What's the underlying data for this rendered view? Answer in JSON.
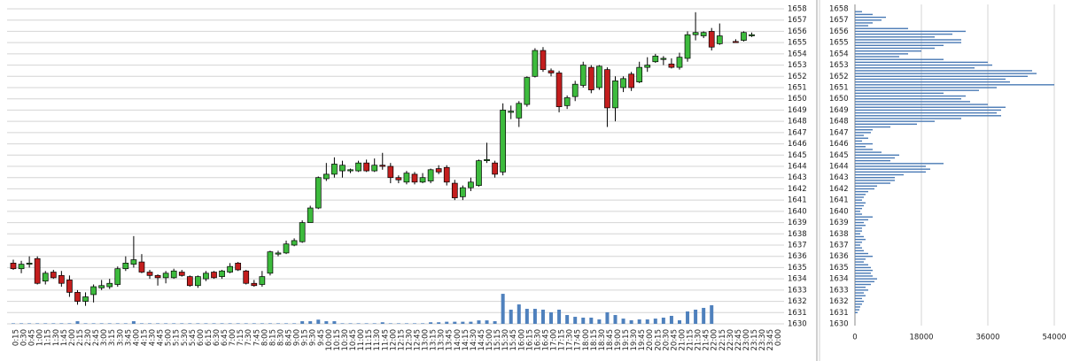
{
  "chart_data": [
    {
      "type": "candlestick",
      "categories": [
        "0:15",
        "0:30",
        "0:45",
        "1:00",
        "1:15",
        "1:30",
        "1:45",
        "2:00",
        "2:15",
        "2:30",
        "2:45",
        "3:00",
        "3:15",
        "3:30",
        "3:45",
        "4:00",
        "4:15",
        "4:30",
        "4:45",
        "5:00",
        "5:15",
        "5:30",
        "5:45",
        "6:00",
        "6:15",
        "6:30",
        "6:45",
        "7:00",
        "7:15",
        "7:30",
        "7:45",
        "8:00",
        "8:15",
        "8:30",
        "8:45",
        "9:00",
        "9:15",
        "9:30",
        "9:45",
        "10:00",
        "10:15",
        "10:30",
        "10:45",
        "11:00",
        "11:15",
        "11:30",
        "11:45",
        "12:00",
        "12:15",
        "12:30",
        "12:45",
        "13:00",
        "13:15",
        "13:30",
        "13:45",
        "14:00",
        "14:15",
        "14:30",
        "14:45",
        "15:00",
        "15:15",
        "15:30",
        "15:45",
        "16:00",
        "16:15",
        "16:30",
        "16:45",
        "17:00",
        "17:15",
        "17:30",
        "17:45",
        "18:00",
        "18:15",
        "18:30",
        "18:45",
        "19:00",
        "19:15",
        "19:30",
        "19:45",
        "20:00",
        "20:15",
        "20:30",
        "20:45",
        "21:00",
        "21:15",
        "21:30",
        "21:45",
        "22:00",
        "22:15",
        "22:30",
        "22:45",
        "23:00",
        "23:15",
        "23:30",
        "23:45",
        "0:00"
      ],
      "open": [
        1635.4,
        1634.9,
        1635.3,
        1635.8,
        1633.8,
        1634.6,
        1634.3,
        1633.9,
        1632.8,
        1632,
        1632.6,
        1633.2,
        1633.3,
        1633.5,
        1634.9,
        1635.3,
        1635.5,
        1634.6,
        1634.3,
        1634.1,
        1634.1,
        1634.6,
        1634.2,
        1633.4,
        1634,
        1634.6,
        1634.2,
        1634.6,
        1635.4,
        1634.7,
        1633.6,
        1633.5,
        1634.5,
        1636.2,
        1636.3,
        1637,
        1637.3,
        1639,
        1640.3,
        1642.9,
        1643.3,
        1643.6,
        1643.6,
        1643.6,
        1644.3,
        1643.6,
        1644.1,
        1644,
        1643,
        1642.6,
        1643.3,
        1642.6,
        1642.7,
        1643.8,
        1643.9,
        1642.5,
        1641.3,
        1642.1,
        1642.3,
        1644.5,
        1644.3,
        1643.5,
        1648.8,
        1648.3,
        1649.5,
        1652,
        1654.3,
        1652.5,
        1652.3,
        1649.4,
        1650.2,
        1651.2,
        1652.8,
        1651,
        1652.6,
        1649.2,
        1651,
        1652.2,
        1651.5,
        1652.8,
        1653.3,
        1653.5,
        1653.1,
        1652.8,
        1653.6,
        1655.7,
        1655.6,
        1656,
        1654.9,
        null,
        1655.1,
        1655.2,
        1655.6,
        null,
        null,
        null
      ],
      "high": [
        1635.7,
        1635.6,
        1636,
        1636,
        1634.7,
        1634.8,
        1634.7,
        1634.3,
        1633,
        1632.8,
        1633.5,
        1633.9,
        1634,
        1635.1,
        1636,
        1637.8,
        1636.2,
        1634.8,
        1634.4,
        1634.7,
        1634.9,
        1634.8,
        1634.3,
        1634.3,
        1634.7,
        1634.7,
        1634.8,
        1635.4,
        1635.5,
        1634.8,
        1633.9,
        1634.7,
        1636.5,
        1636.5,
        1637.4,
        1637.6,
        1639.2,
        1640.5,
        1643.1,
        1644.3,
        1644.8,
        1644.5,
        1643.8,
        1644.5,
        1644.6,
        1644.7,
        1645.2,
        1644.3,
        1643.2,
        1643.6,
        1643.5,
        1643.4,
        1643.8,
        1644.1,
        1644.1,
        1642.8,
        1642.3,
        1643,
        1644.6,
        1646.1,
        1644.5,
        1649.6,
        1649.4,
        1649.8,
        1652,
        1654.5,
        1654.6,
        1652.7,
        1652.5,
        1650.3,
        1651.6,
        1653.3,
        1653,
        1653,
        1652.8,
        1652,
        1652,
        1652.4,
        1653.3,
        1653.7,
        1654,
        1653.8,
        1653.6,
        1654.1,
        1656,
        1657.7,
        1656,
        1656.3,
        1656.7,
        null,
        1655.3,
        1656,
        1655.9,
        null,
        null,
        null
      ],
      "low": [
        1634.8,
        1634.5,
        1635,
        1633.5,
        1633.5,
        1634,
        1633.3,
        1632.4,
        1631.7,
        1631.6,
        1631.9,
        1633,
        1633.1,
        1633.3,
        1634.7,
        1635,
        1634.5,
        1634,
        1633.4,
        1633.6,
        1634,
        1634.2,
        1633.3,
        1633.2,
        1633.8,
        1634,
        1634,
        1634.5,
        1634.7,
        1633.5,
        1633.3,
        1633.3,
        1634.3,
        1636,
        1636.2,
        1636.9,
        1637.2,
        1639,
        1640.2,
        1642.7,
        1643,
        1643,
        1643.4,
        1643.5,
        1643.5,
        1643.5,
        1643.7,
        1642.5,
        1642.5,
        1642.4,
        1642.4,
        1642.5,
        1642.5,
        1643.3,
        1642.3,
        1641,
        1641,
        1641.8,
        1642.2,
        1644.3,
        1643,
        1643.2,
        1648.2,
        1647.5,
        1649.3,
        1651.9,
        1652.4,
        1652,
        1648.8,
        1649.1,
        1649.8,
        1651,
        1650.5,
        1650.8,
        1647.5,
        1648,
        1650.6,
        1650.7,
        1651.4,
        1652.4,
        1653.2,
        1653,
        1652.7,
        1652.6,
        1653.3,
        1655.2,
        1655.4,
        1654.3,
        1654.8,
        null,
        1655,
        1655.1,
        1655.5,
        null,
        null,
        null
      ],
      "close": [
        1634.9,
        1635.3,
        1635.4,
        1633.6,
        1634.5,
        1634.1,
        1633.6,
        1632.8,
        1632,
        1632.4,
        1633.3,
        1633.4,
        1633.6,
        1634.9,
        1635.4,
        1635.7,
        1634.6,
        1634.3,
        1634.1,
        1634.5,
        1634.7,
        1634.3,
        1633.4,
        1634.2,
        1634.5,
        1634.1,
        1634.7,
        1635.1,
        1634.8,
        1633.6,
        1633.4,
        1634.2,
        1636.4,
        1636.3,
        1637.1,
        1637.4,
        1639,
        1640.3,
        1643,
        1643.3,
        1644.2,
        1644.1,
        1643.7,
        1644.3,
        1643.6,
        1644.1,
        1644,
        1643,
        1642.8,
        1643.4,
        1642.6,
        1643,
        1643.7,
        1643.5,
        1642.6,
        1641.2,
        1642.1,
        1642.6,
        1644.5,
        1644.6,
        1643.3,
        1649,
        1648.9,
        1649.6,
        1651.9,
        1654.3,
        1652.6,
        1652.3,
        1649.3,
        1650.1,
        1651.3,
        1653,
        1650.8,
        1652.9,
        1649.2,
        1651.6,
        1651.8,
        1651,
        1652.8,
        1653,
        1653.8,
        1653.6,
        1652.8,
        1653.7,
        1655.7,
        1655.9,
        1655.9,
        1654.6,
        1655.6,
        null,
        1655,
        1655.9,
        1655.7,
        null,
        null,
        null
      ],
      "volume": [
        50,
        50,
        50,
        50,
        50,
        50,
        50,
        50,
        250,
        50,
        50,
        50,
        50,
        50,
        50,
        250,
        50,
        50,
        50,
        50,
        50,
        50,
        50,
        50,
        50,
        50,
        50,
        50,
        50,
        50,
        50,
        50,
        50,
        50,
        50,
        50,
        250,
        250,
        400,
        250,
        250,
        50,
        50,
        50,
        50,
        50,
        150,
        50,
        50,
        50,
        50,
        50,
        150,
        150,
        200,
        200,
        200,
        200,
        330,
        330,
        250,
        2860,
        1350,
        1850,
        1430,
        1430,
        1350,
        1100,
        1350,
        840,
        670,
        590,
        590,
        420,
        1100,
        840,
        500,
        340,
        420,
        420,
        500,
        590,
        760,
        340,
        1180,
        1350,
        1520,
        1770,
        null,
        null,
        null,
        null,
        null,
        null,
        null,
        null
      ],
      "up_color": "#3dbb3d",
      "down_color": "#c41e1e",
      "volume_color": "#4f81bd",
      "ylim": [
        1630,
        1658
      ],
      "yticks": [
        1630,
        1631,
        1632,
        1633,
        1634,
        1635,
        1636,
        1637,
        1638,
        1639,
        1640,
        1641,
        1642,
        1643,
        1644,
        1645,
        1646,
        1647,
        1648,
        1649,
        1650,
        1651,
        1652,
        1653,
        1654,
        1655,
        1656,
        1657,
        1658
      ],
      "volume_lim": [
        0,
        30000
      ],
      "grid": true
    },
    {
      "type": "profile",
      "levels": [
        1630,
        1630.25,
        1630.5,
        1630.75,
        1631,
        1631.25,
        1631.5,
        1631.75,
        1632,
        1632.25,
        1632.5,
        1632.75,
        1633,
        1633.25,
        1633.5,
        1633.75,
        1634,
        1634.25,
        1634.5,
        1634.75,
        1635,
        1635.25,
        1635.5,
        1635.75,
        1636,
        1636.25,
        1636.5,
        1636.75,
        1637,
        1637.25,
        1637.5,
        1637.75,
        1638,
        1638.25,
        1638.5,
        1638.75,
        1639,
        1639.25,
        1639.5,
        1639.75,
        1640,
        1640.25,
        1640.5,
        1640.75,
        1641,
        1641.25,
        1641.5,
        1641.75,
        1642,
        1642.25,
        1642.5,
        1642.75,
        1643,
        1643.25,
        1643.5,
        1643.75,
        1644,
        1644.25,
        1644.5,
        1644.75,
        1645,
        1645.25,
        1645.5,
        1645.75,
        1646,
        1646.25,
        1646.5,
        1646.75,
        1647,
        1647.25,
        1647.5,
        1647.75,
        1648,
        1648.25,
        1648.5,
        1648.75,
        1649,
        1649.25,
        1649.5,
        1649.75,
        1650,
        1650.25,
        1650.5,
        1650.75,
        1651,
        1651.25,
        1651.5,
        1651.75,
        1652,
        1652.25,
        1652.5,
        1652.75,
        1653,
        1653.25,
        1653.5,
        1653.75,
        1654,
        1654.25,
        1654.5,
        1654.75,
        1655,
        1655.25,
        1655.5,
        1655.75,
        1656,
        1656.25,
        1656.5,
        1656.75,
        1657,
        1657.25,
        1657.5,
        1657.75,
        1658
      ],
      "values": [
        0,
        0,
        0,
        0,
        720,
        1200,
        1440,
        1920,
        2400,
        1920,
        2880,
        2400,
        3600,
        2880,
        4320,
        5280,
        6000,
        4800,
        4320,
        4800,
        4320,
        3600,
        2400,
        2880,
        4800,
        3600,
        2400,
        1920,
        1440,
        1920,
        2880,
        2400,
        1440,
        1920,
        1920,
        2880,
        2400,
        3600,
        4800,
        1920,
        1440,
        1920,
        2400,
        2880,
        1920,
        2400,
        2880,
        3600,
        5280,
        6000,
        9600,
        10800,
        10800,
        13200,
        19200,
        20400,
        19200,
        24000,
        9600,
        10800,
        12000,
        7200,
        4800,
        2880,
        4800,
        1920,
        3600,
        2400,
        4320,
        4800,
        9600,
        16800,
        21600,
        28800,
        39600,
        38400,
        39600,
        40800,
        36000,
        31200,
        28800,
        30000,
        24000,
        33600,
        38400,
        54000,
        42000,
        40800,
        46800,
        49200,
        48000,
        32400,
        37200,
        36000,
        24000,
        12000,
        14400,
        18000,
        21600,
        24000,
        28800,
        28800,
        21600,
        26400,
        30000,
        14400,
        3600,
        4800,
        7200,
        8400,
        4800,
        1920,
        0
      ],
      "color": "#4a7ab5",
      "xlim": [
        0,
        54000
      ],
      "xticks": [
        0,
        18000,
        36000,
        54000
      ],
      "ylim": [
        1630,
        1658
      ],
      "yticks": [
        1630,
        1631,
        1632,
        1633,
        1634,
        1635,
        1636,
        1637,
        1638,
        1639,
        1640,
        1641,
        1642,
        1643,
        1644,
        1645,
        1646,
        1647,
        1648,
        1649,
        1650,
        1651,
        1652,
        1653,
        1654,
        1655,
        1656,
        1657,
        1658
      ],
      "grid": true
    }
  ]
}
